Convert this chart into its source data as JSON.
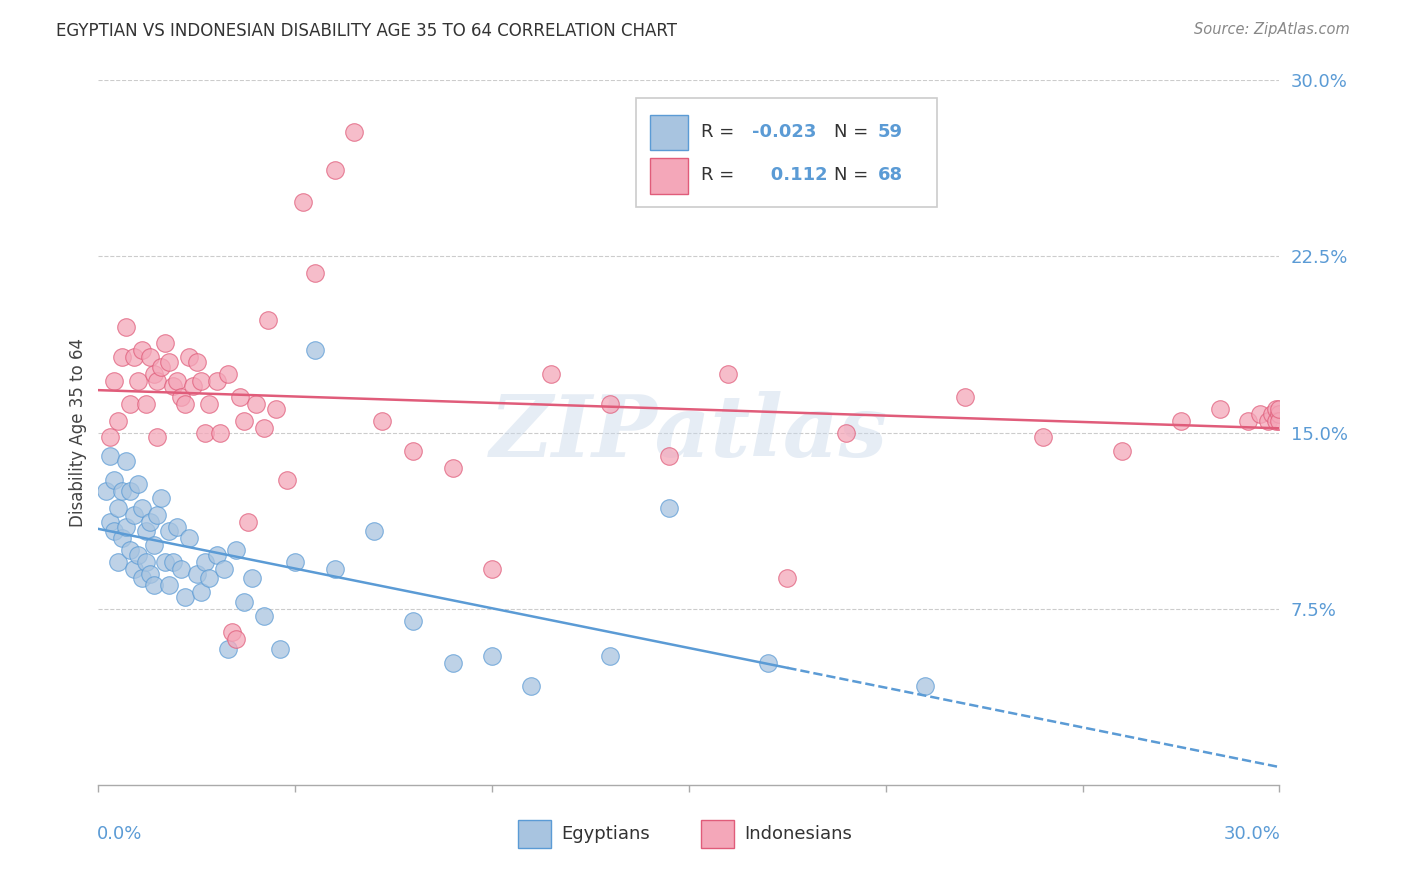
{
  "title": "EGYPTIAN VS INDONESIAN DISABILITY AGE 35 TO 64 CORRELATION CHART",
  "source": "Source: ZipAtlas.com",
  "ylabel": "Disability Age 35 to 64",
  "legend_label1": "Egyptians",
  "legend_label2": "Indonesians",
  "r1_label": "R = ",
  "r1_val": "-0.023",
  "n1_label": "N = ",
  "n1_val": "59",
  "r2_label": "R = ",
  "r2_val": "0.112",
  "n2_label": "N = ",
  "n2_val": "68",
  "xlim": [
    0.0,
    0.3
  ],
  "ylim": [
    0.0,
    0.3
  ],
  "yticks": [
    0.075,
    0.15,
    0.225,
    0.3
  ],
  "ytick_labels": [
    "7.5%",
    "15.0%",
    "22.5%",
    "30.0%"
  ],
  "color_egyptian": "#a8c4e0",
  "color_indonesian": "#f4a7b9",
  "line_color_egyptian": "#5b9bd5",
  "line_color_indonesian": "#e05c7a",
  "bg_color": "#ffffff",
  "watermark_text": "ZIPatlas",
  "egyptian_x": [
    0.002,
    0.003,
    0.003,
    0.004,
    0.004,
    0.005,
    0.005,
    0.006,
    0.006,
    0.007,
    0.007,
    0.008,
    0.008,
    0.009,
    0.009,
    0.01,
    0.01,
    0.011,
    0.011,
    0.012,
    0.012,
    0.013,
    0.013,
    0.014,
    0.014,
    0.015,
    0.016,
    0.017,
    0.018,
    0.018,
    0.019,
    0.02,
    0.021,
    0.022,
    0.023,
    0.025,
    0.026,
    0.027,
    0.028,
    0.03,
    0.032,
    0.033,
    0.035,
    0.037,
    0.039,
    0.042,
    0.046,
    0.05,
    0.055,
    0.06,
    0.07,
    0.08,
    0.09,
    0.1,
    0.11,
    0.13,
    0.145,
    0.17,
    0.21
  ],
  "egyptian_y": [
    0.125,
    0.14,
    0.112,
    0.13,
    0.108,
    0.118,
    0.095,
    0.125,
    0.105,
    0.138,
    0.11,
    0.125,
    0.1,
    0.115,
    0.092,
    0.128,
    0.098,
    0.118,
    0.088,
    0.108,
    0.095,
    0.112,
    0.09,
    0.102,
    0.085,
    0.115,
    0.122,
    0.095,
    0.108,
    0.085,
    0.095,
    0.11,
    0.092,
    0.08,
    0.105,
    0.09,
    0.082,
    0.095,
    0.088,
    0.098,
    0.092,
    0.058,
    0.1,
    0.078,
    0.088,
    0.072,
    0.058,
    0.095,
    0.185,
    0.092,
    0.108,
    0.07,
    0.052,
    0.055,
    0.042,
    0.055,
    0.118,
    0.052,
    0.042
  ],
  "indonesian_x": [
    0.003,
    0.004,
    0.005,
    0.006,
    0.007,
    0.008,
    0.009,
    0.01,
    0.011,
    0.012,
    0.013,
    0.014,
    0.015,
    0.015,
    0.016,
    0.017,
    0.018,
    0.019,
    0.02,
    0.021,
    0.022,
    0.023,
    0.024,
    0.025,
    0.026,
    0.027,
    0.028,
    0.03,
    0.031,
    0.033,
    0.034,
    0.035,
    0.036,
    0.037,
    0.038,
    0.04,
    0.042,
    0.043,
    0.045,
    0.048,
    0.052,
    0.055,
    0.06,
    0.065,
    0.072,
    0.08,
    0.09,
    0.1,
    0.115,
    0.13,
    0.145,
    0.16,
    0.175,
    0.19,
    0.22,
    0.24,
    0.26,
    0.275,
    0.285,
    0.292,
    0.295,
    0.297,
    0.298,
    0.299,
    0.299,
    0.3,
    0.3,
    0.3
  ],
  "indonesian_y": [
    0.148,
    0.172,
    0.155,
    0.182,
    0.195,
    0.162,
    0.182,
    0.172,
    0.185,
    0.162,
    0.182,
    0.175,
    0.172,
    0.148,
    0.178,
    0.188,
    0.18,
    0.17,
    0.172,
    0.165,
    0.162,
    0.182,
    0.17,
    0.18,
    0.172,
    0.15,
    0.162,
    0.172,
    0.15,
    0.175,
    0.065,
    0.062,
    0.165,
    0.155,
    0.112,
    0.162,
    0.152,
    0.198,
    0.16,
    0.13,
    0.248,
    0.218,
    0.262,
    0.278,
    0.155,
    0.142,
    0.135,
    0.092,
    0.175,
    0.162,
    0.14,
    0.175,
    0.088,
    0.15,
    0.165,
    0.148,
    0.142,
    0.155,
    0.16,
    0.155,
    0.158,
    0.155,
    0.158,
    0.16,
    0.155,
    0.158,
    0.155,
    0.16
  ]
}
